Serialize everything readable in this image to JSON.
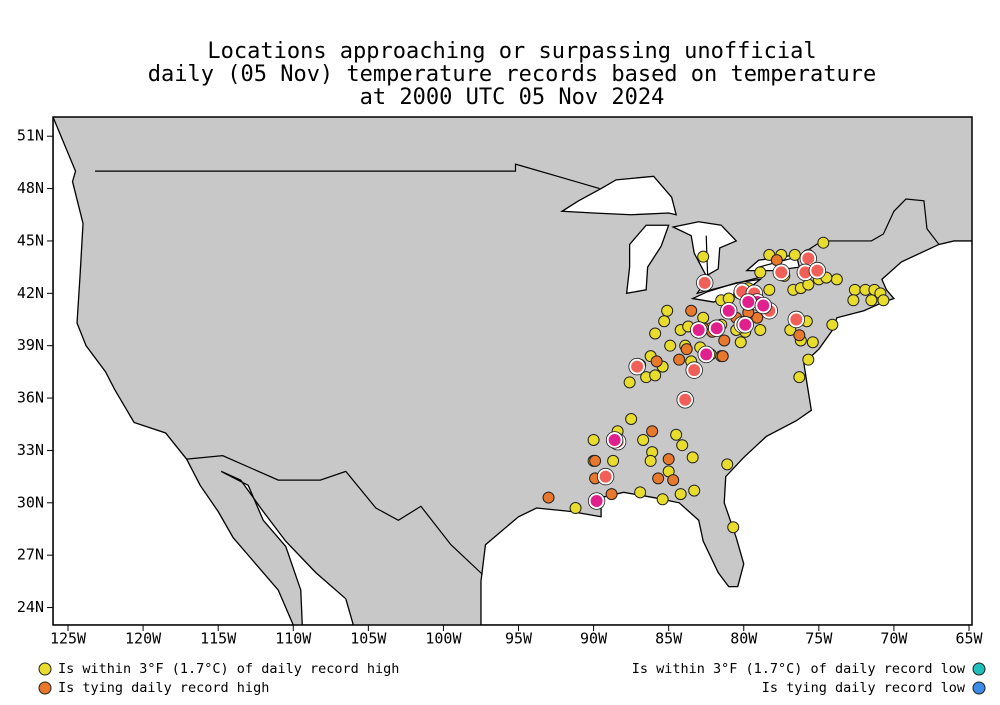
{
  "title": [
    "Locations approaching or surpassing unofficial",
    "daily (05 Nov) temperature records based on temperature",
    "at 2000 UTC 05 Nov 2024"
  ],
  "map": {
    "xlim": [
      -126,
      -64.8
    ],
    "ylim": [
      23,
      52.1
    ],
    "xticks": [
      {
        "value": -125,
        "label": "125W"
      },
      {
        "value": -120,
        "label": "120W"
      },
      {
        "value": -115,
        "label": "115W"
      },
      {
        "value": -110,
        "label": "110W"
      },
      {
        "value": -105,
        "label": "105W"
      },
      {
        "value": -100,
        "label": "100W"
      },
      {
        "value": -95,
        "label": "95W"
      },
      {
        "value": -90,
        "label": "90W"
      },
      {
        "value": -85,
        "label": "85W"
      },
      {
        "value": -80,
        "label": "80W"
      },
      {
        "value": -75,
        "label": "75W"
      },
      {
        "value": -70,
        "label": "70W"
      },
      {
        "value": -65,
        "label": "65W"
      }
    ],
    "yticks": [
      {
        "value": 51,
        "label": "51N"
      },
      {
        "value": 48,
        "label": "48N"
      },
      {
        "value": 45,
        "label": "45N"
      },
      {
        "value": 42,
        "label": "42N"
      },
      {
        "value": 39,
        "label": "39N"
      },
      {
        "value": 36,
        "label": "36N"
      },
      {
        "value": 33,
        "label": "33N"
      },
      {
        "value": 30,
        "label": "30N"
      },
      {
        "value": 27,
        "label": "27N"
      },
      {
        "value": 24,
        "label": "24N"
      }
    ],
    "land_color": "#c8c8c8",
    "styles": [
      {
        "color": "#e8dc2c"
      },
      {
        "color": "#e8782c"
      },
      {
        "color": "#f06058",
        "ring": "#ffffff"
      },
      {
        "color": "#e0208c",
        "ring": "#ffffff"
      }
    ],
    "points": [
      [
        -82.7,
        44.1,
        0
      ],
      [
        -78.3,
        44.2,
        0
      ],
      [
        -77.5,
        44.2,
        0
      ],
      [
        -76.6,
        44.2,
        0
      ],
      [
        -75.7,
        44.2,
        0
      ],
      [
        -74.7,
        44.9,
        0
      ],
      [
        -78.9,
        43.2,
        0
      ],
      [
        -77.3,
        43.0,
        0
      ],
      [
        -73.8,
        42.8,
        0
      ],
      [
        -79.7,
        42.3,
        0
      ],
      [
        -81.5,
        41.6,
        0
      ],
      [
        -81.0,
        41.7,
        0
      ],
      [
        -80.3,
        42.0,
        0
      ],
      [
        -79.1,
        41.8,
        0
      ],
      [
        -78.3,
        42.2,
        0
      ],
      [
        -76.7,
        42.2,
        0
      ],
      [
        -76.2,
        42.3,
        0
      ],
      [
        -75.7,
        42.5,
        0
      ],
      [
        -75.0,
        42.8,
        0
      ],
      [
        -74.5,
        42.9,
        0
      ],
      [
        -72.6,
        42.2,
        0
      ],
      [
        -71.9,
        42.2,
        0
      ],
      [
        -71.3,
        42.2,
        0
      ],
      [
        -70.9,
        42.0,
        0
      ],
      [
        -70.7,
        41.6,
        0
      ],
      [
        -72.7,
        41.6,
        0
      ],
      [
        -71.5,
        41.6,
        0
      ],
      [
        -85.1,
        41.0,
        0
      ],
      [
        -85.9,
        39.7,
        0
      ],
      [
        -85.3,
        40.4,
        0
      ],
      [
        -84.2,
        39.9,
        0
      ],
      [
        -83.7,
        40.1,
        0
      ],
      [
        -82.7,
        40.6,
        0
      ],
      [
        -82.2,
        40.0,
        0
      ],
      [
        -81.5,
        40.2,
        0
      ],
      [
        -80.5,
        39.9,
        0
      ],
      [
        -79.9,
        39.8,
        0
      ],
      [
        -78.9,
        39.9,
        0
      ],
      [
        -80.2,
        39.2,
        0
      ],
      [
        -76.9,
        39.9,
        0
      ],
      [
        -75.8,
        40.4,
        0
      ],
      [
        -76.2,
        39.3,
        0
      ],
      [
        -75.4,
        39.2,
        0
      ],
      [
        -74.1,
        40.2,
        0
      ],
      [
        -75.7,
        38.2,
        0
      ],
      [
        -84.9,
        39.0,
        0
      ],
      [
        -83.9,
        39.0,
        0
      ],
      [
        -82.9,
        38.9,
        0
      ],
      [
        -82.2,
        38.5,
        0
      ],
      [
        -86.2,
        38.4,
        0
      ],
      [
        -86.9,
        37.9,
        0
      ],
      [
        -87.6,
        36.9,
        0
      ],
      [
        -86.5,
        37.2,
        0
      ],
      [
        -85.9,
        37.3,
        0
      ],
      [
        -85.4,
        37.8,
        0
      ],
      [
        -83.5,
        38.1,
        0
      ],
      [
        -81.5,
        38.4,
        0
      ],
      [
        -76.3,
        37.2,
        0
      ],
      [
        -87.5,
        34.8,
        0
      ],
      [
        -88.4,
        34.1,
        0
      ],
      [
        -90.0,
        33.6,
        0
      ],
      [
        -90.0,
        32.4,
        0
      ],
      [
        -88.7,
        32.4,
        0
      ],
      [
        -86.7,
        33.6,
        0
      ],
      [
        -86.1,
        32.9,
        0
      ],
      [
        -84.5,
        33.9,
        0
      ],
      [
        -84.1,
        33.3,
        0
      ],
      [
        -86.2,
        32.4,
        0
      ],
      [
        -85.0,
        31.8,
        0
      ],
      [
        -83.4,
        32.6,
        0
      ],
      [
        -81.1,
        32.2,
        0
      ],
      [
        -86.9,
        30.6,
        0
      ],
      [
        -85.4,
        30.2,
        0
      ],
      [
        -84.2,
        30.5,
        0
      ],
      [
        -83.3,
        30.7,
        0
      ],
      [
        -91.2,
        29.7,
        0
      ],
      [
        -80.7,
        28.6,
        0
      ],
      [
        -83.5,
        41.0,
        1
      ],
      [
        -82.7,
        40.0,
        1
      ],
      [
        -82.1,
        39.8,
        1
      ],
      [
        -81.3,
        39.3,
        1
      ],
      [
        -81.4,
        38.4,
        1
      ],
      [
        -83.8,
        38.8,
        1
      ],
      [
        -84.3,
        38.2,
        1
      ],
      [
        -85.8,
        38.1,
        1
      ],
      [
        -86.1,
        34.1,
        1
      ],
      [
        -89.9,
        32.4,
        1
      ],
      [
        -89.9,
        31.4,
        1
      ],
      [
        -88.8,
        30.5,
        1
      ],
      [
        -93.0,
        30.3,
        1
      ],
      [
        -84.7,
        31.3,
        1
      ],
      [
        -85.7,
        31.4,
        1
      ],
      [
        -85.0,
        32.5,
        1
      ],
      [
        -79.1,
        40.6,
        1
      ],
      [
        -80.5,
        40.6,
        1
      ],
      [
        -79.7,
        40.9,
        1
      ],
      [
        -76.3,
        39.6,
        1
      ],
      [
        -77.8,
        43.9,
        1
      ],
      [
        -82.6,
        42.6,
        2
      ],
      [
        -80.1,
        42.1,
        2
      ],
      [
        -79.3,
        42.0,
        2
      ],
      [
        -78.3,
        41.0,
        2
      ],
      [
        -77.5,
        43.2,
        2
      ],
      [
        -75.7,
        44.0,
        2
      ],
      [
        -75.9,
        43.2,
        2
      ],
      [
        -75.1,
        43.3,
        2
      ],
      [
        -87.1,
        37.8,
        2
      ],
      [
        -83.3,
        37.6,
        2
      ],
      [
        -83.9,
        35.9,
        2
      ],
      [
        -88.4,
        33.5,
        2
      ],
      [
        -89.2,
        31.5,
        2
      ],
      [
        -76.5,
        40.5,
        2
      ],
      [
        -80.1,
        40.2,
        2
      ],
      [
        -79.1,
        41.5,
        3
      ],
      [
        -79.7,
        41.5,
        3
      ],
      [
        -78.7,
        41.3,
        3
      ],
      [
        -81.0,
        41.0,
        3
      ],
      [
        -79.9,
        40.2,
        3
      ],
      [
        -81.8,
        40.0,
        3
      ],
      [
        -83.0,
        39.9,
        3
      ],
      [
        -82.5,
        38.5,
        3
      ],
      [
        -88.6,
        33.6,
        3
      ],
      [
        -89.8,
        30.1,
        3
      ]
    ],
    "legend": [
      {
        "label": "Is within 3°F (1.7°C) of daily record high",
        "color": "#e8dc2c",
        "side": "left"
      },
      {
        "label": "Is tying daily record high",
        "color": "#e8782c",
        "side": "left"
      },
      {
        "label": "Is within 3°F (1.7°C) of daily record low",
        "color": "#20c0b8",
        "side": "right"
      },
      {
        "label": "Is tying daily record low",
        "color": "#3c8ce8",
        "side": "right"
      }
    ]
  }
}
